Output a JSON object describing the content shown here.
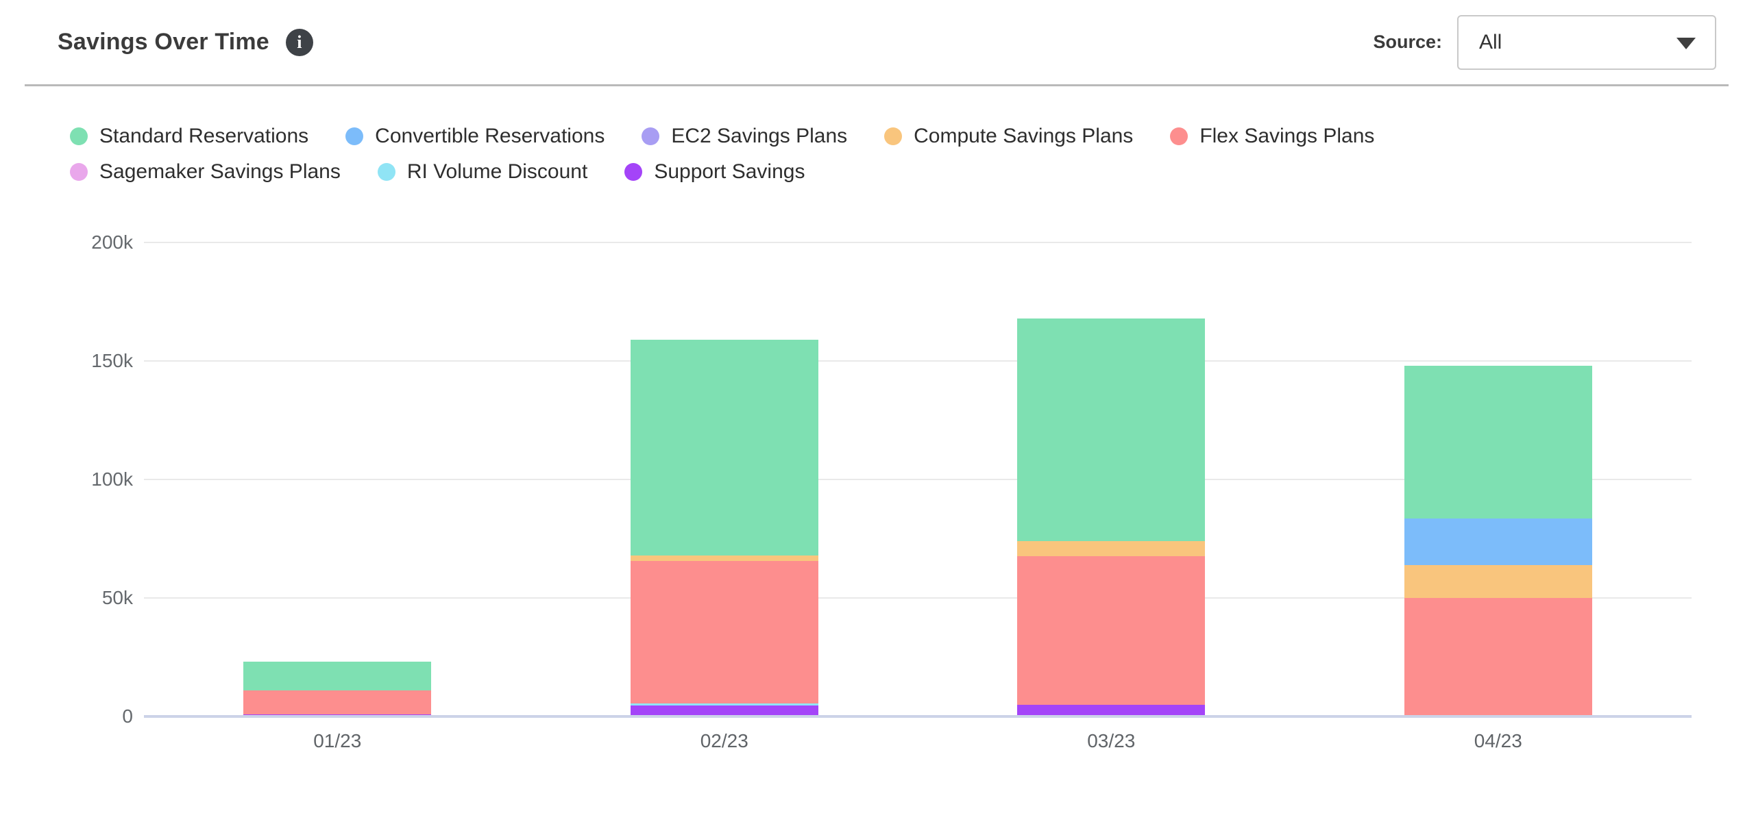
{
  "header": {
    "title": "Savings Over Time",
    "info_icon": "i",
    "source_label": "Source:",
    "source_value": "All"
  },
  "colors": {
    "accent_baseline": "#ccd3e8",
    "gridline": "#e9e9e9",
    "info_icon_bg": "#3e4247"
  },
  "chart_data": {
    "type": "bar",
    "stacked": true,
    "title": "Savings Over Time",
    "xlabel": "",
    "ylabel": "",
    "grid": true,
    "legend_position": "top",
    "categories": [
      "01/23",
      "02/23",
      "03/23",
      "04/23"
    ],
    "ylim": [
      0,
      200000
    ],
    "y_ticks": [
      {
        "value": 0,
        "label": "0"
      },
      {
        "value": 50000,
        "label": "50k"
      },
      {
        "value": 100000,
        "label": "100k"
      },
      {
        "value": 150000,
        "label": "150k"
      },
      {
        "value": 200000,
        "label": "200k"
      }
    ],
    "series": [
      {
        "name": "Standard Reservations",
        "color": "#7ee0b2",
        "values": [
          12000,
          91000,
          94000,
          64500
        ]
      },
      {
        "name": "Convertible Reservations",
        "color": "#7cbcfa",
        "values": [
          0,
          0,
          0,
          19500
        ]
      },
      {
        "name": "EC2 Savings Plans",
        "color": "#a89df3",
        "values": [
          0,
          0,
          0,
          0
        ]
      },
      {
        "name": "Compute Savings Plans",
        "color": "#f9c57d",
        "values": [
          0,
          2500,
          6500,
          14000
        ]
      },
      {
        "name": "Flex Savings Plans",
        "color": "#fd8e8e",
        "values": [
          10000,
          60000,
          62500,
          50000
        ]
      },
      {
        "name": "Sagemaker Savings Plans",
        "color": "#e9a7eb",
        "values": [
          0,
          0,
          0,
          0
        ]
      },
      {
        "name": "RI Volume Discount",
        "color": "#90e4f5",
        "values": [
          0,
          1000,
          0,
          0
        ]
      },
      {
        "name": "Support Savings",
        "color": "#a444f8",
        "values": [
          1000,
          4500,
          5000,
          0
        ]
      }
    ],
    "stack_order": [
      "Support Savings",
      "RI Volume Discount",
      "Flex Savings Plans",
      "Compute Savings Plans",
      "Convertible Reservations",
      "Standard Reservations"
    ],
    "totals": [
      23000,
      159000,
      168000,
      148000
    ]
  }
}
